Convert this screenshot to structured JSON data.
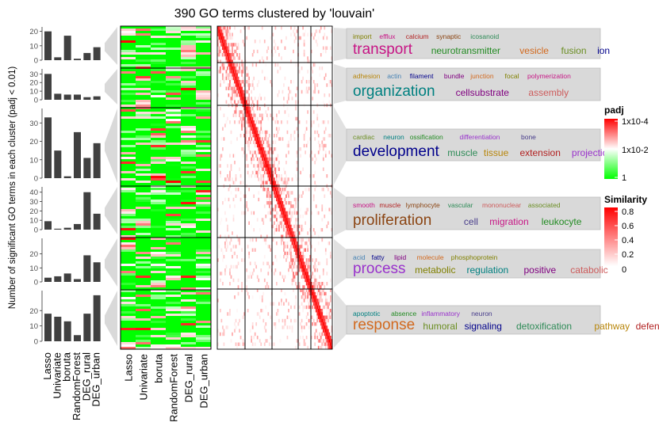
{
  "chart_data": {
    "type": "heatmap",
    "title": "390 GO terms clustered by 'louvain'",
    "ylabel": "Number of significant GO terms in each cluster (padj < 0.01)",
    "methods": [
      "Lasso",
      "Univariate",
      "boruta",
      "RandomForest",
      "DEG_rural",
      "DEG_urban"
    ],
    "bar_panels": [
      {
        "ylim": [
          0,
          22
        ],
        "ticks": [
          "20",
          "10",
          "0"
        ],
        "tick_values": [
          20,
          10,
          0
        ],
        "values": [
          20,
          2,
          17,
          1,
          5,
          9
        ]
      },
      {
        "ylim": [
          0,
          34
        ],
        "ticks": [
          "30",
          "20",
          "10",
          "0"
        ],
        "tick_values": [
          30,
          20,
          10,
          0
        ],
        "values": [
          30,
          7,
          6,
          6,
          3,
          4
        ]
      },
      {
        "ylim": [
          0,
          37
        ],
        "ticks": [
          "30",
          "20",
          "10",
          "0"
        ],
        "tick_values": [
          30,
          20,
          10,
          0
        ],
        "values": [
          33,
          15,
          1,
          25,
          11,
          19
        ]
      },
      {
        "ylim": [
          0,
          44
        ],
        "ticks": [
          "40",
          "30",
          "20",
          "10",
          "0"
        ],
        "tick_values": [
          40,
          30,
          20,
          10,
          0
        ],
        "values": [
          9,
          1,
          2,
          6,
          40,
          17
        ]
      },
      {
        "ylim": [
          0,
          30
        ],
        "ticks": [
          "20",
          "10",
          "0"
        ],
        "tick_values": [
          20,
          10,
          0
        ],
        "values": [
          3,
          4,
          6,
          2,
          19,
          14
        ]
      },
      {
        "ylim": [
          0,
          32
        ],
        "ticks": [
          "20",
          "10",
          "0"
        ],
        "tick_values": [
          20,
          10,
          0
        ],
        "values": [
          18,
          16,
          13,
          4,
          18,
          30
        ]
      }
    ],
    "clusters": [
      {
        "small": [
          "import",
          "efflux",
          "calcium",
          "synaptic",
          "icosanoid"
        ],
        "big": [
          "transport",
          "neurotransmitter",
          "vesicle",
          "fusion",
          "ion"
        ]
      },
      {
        "small": [
          "adhesion",
          "actin",
          "filament",
          "bundle",
          "junction",
          "focal",
          "polymerization"
        ],
        "big": [
          "organization",
          "cellsubstrate",
          "assembly"
        ]
      },
      {
        "small": [
          "cardiac",
          "neuron",
          "ossification",
          "differentiation",
          "bone"
        ],
        "big": [
          "development",
          "muscle",
          "tissue",
          "extension",
          "projection"
        ]
      },
      {
        "small": [
          "smooth",
          "muscle",
          "lymphocyte",
          "vascular",
          "mononuclear",
          "associated"
        ],
        "big": [
          "proliferation",
          "cell",
          "migration",
          "leukocyte"
        ]
      },
      {
        "small": [
          "acid",
          "fatty",
          "lipid",
          "molecule",
          "phosphoprotein"
        ],
        "big": [
          "process",
          "metabolic",
          "regulation",
          "positive",
          "catabolic"
        ]
      },
      {
        "small": [
          "apoptotic",
          "absence",
          "inflammatory",
          "neuron"
        ],
        "big": [
          "response",
          "humoral",
          "signaling",
          "detoxification",
          "pathway",
          "defense"
        ]
      }
    ],
    "padj_legend": {
      "title": "padj",
      "labels": [
        "1x10-4",
        "1x10-2",
        "1"
      ]
    },
    "similarity_legend": {
      "title": "Similarity",
      "labels": [
        "0.8",
        "0.6",
        "0.4",
        "0.2",
        "0"
      ]
    },
    "colors": {
      "bar": "#404040",
      "panel_bg": "#d9d9d9",
      "heat_low": "#00ff00",
      "heat_high": "#ff0000",
      "sim_high": "#ff0000",
      "sim_low": "#ffffff",
      "word_palette": [
        "#808000",
        "#b8860b",
        "#6b8e23",
        "#c71585",
        "#4682b4",
        "#008080",
        "#b22222",
        "#00008b",
        "#228b22",
        "#8b4513",
        "#800080",
        "#9932cc",
        "#2e8b57",
        "#d2691e",
        "#483d8b",
        "#cd5c5c"
      ]
    }
  }
}
